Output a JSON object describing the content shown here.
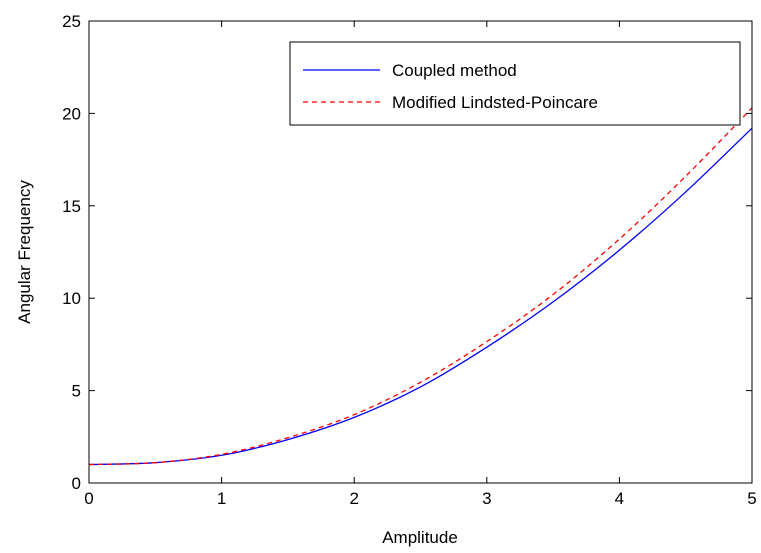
{
  "chart_data": {
    "type": "line",
    "title": "",
    "xlabel": "Amplitude",
    "ylabel": "Angular Frequency",
    "xlim": [
      0,
      5
    ],
    "ylim": [
      0,
      25
    ],
    "xticks": [
      0,
      1,
      2,
      3,
      4,
      5
    ],
    "yticks": [
      0,
      5,
      10,
      15,
      20,
      25
    ],
    "xtick_labels": [
      "0",
      "1",
      "2",
      "3",
      "4",
      "5"
    ],
    "ytick_labels": [
      "0",
      "5",
      "10",
      "15",
      "20",
      "25"
    ],
    "grid": false,
    "legend_position": "top-right",
    "x": [
      0,
      0.5,
      1,
      1.5,
      2,
      2.5,
      3,
      3.5,
      4,
      4.5,
      5
    ],
    "series": [
      {
        "name": "Coupled method",
        "color": "#0000ff",
        "style": "solid",
        "values": [
          1.0,
          1.1,
          1.5,
          2.35,
          3.55,
          5.2,
          7.35,
          9.8,
          12.6,
          15.75,
          19.2
        ]
      },
      {
        "name": "Modified Lindsted-Poincare",
        "color": "#ff0000",
        "style": "dashed",
        "values": [
          1.0,
          1.1,
          1.55,
          2.45,
          3.7,
          5.45,
          7.65,
          10.2,
          13.2,
          16.6,
          20.3
        ]
      }
    ]
  }
}
